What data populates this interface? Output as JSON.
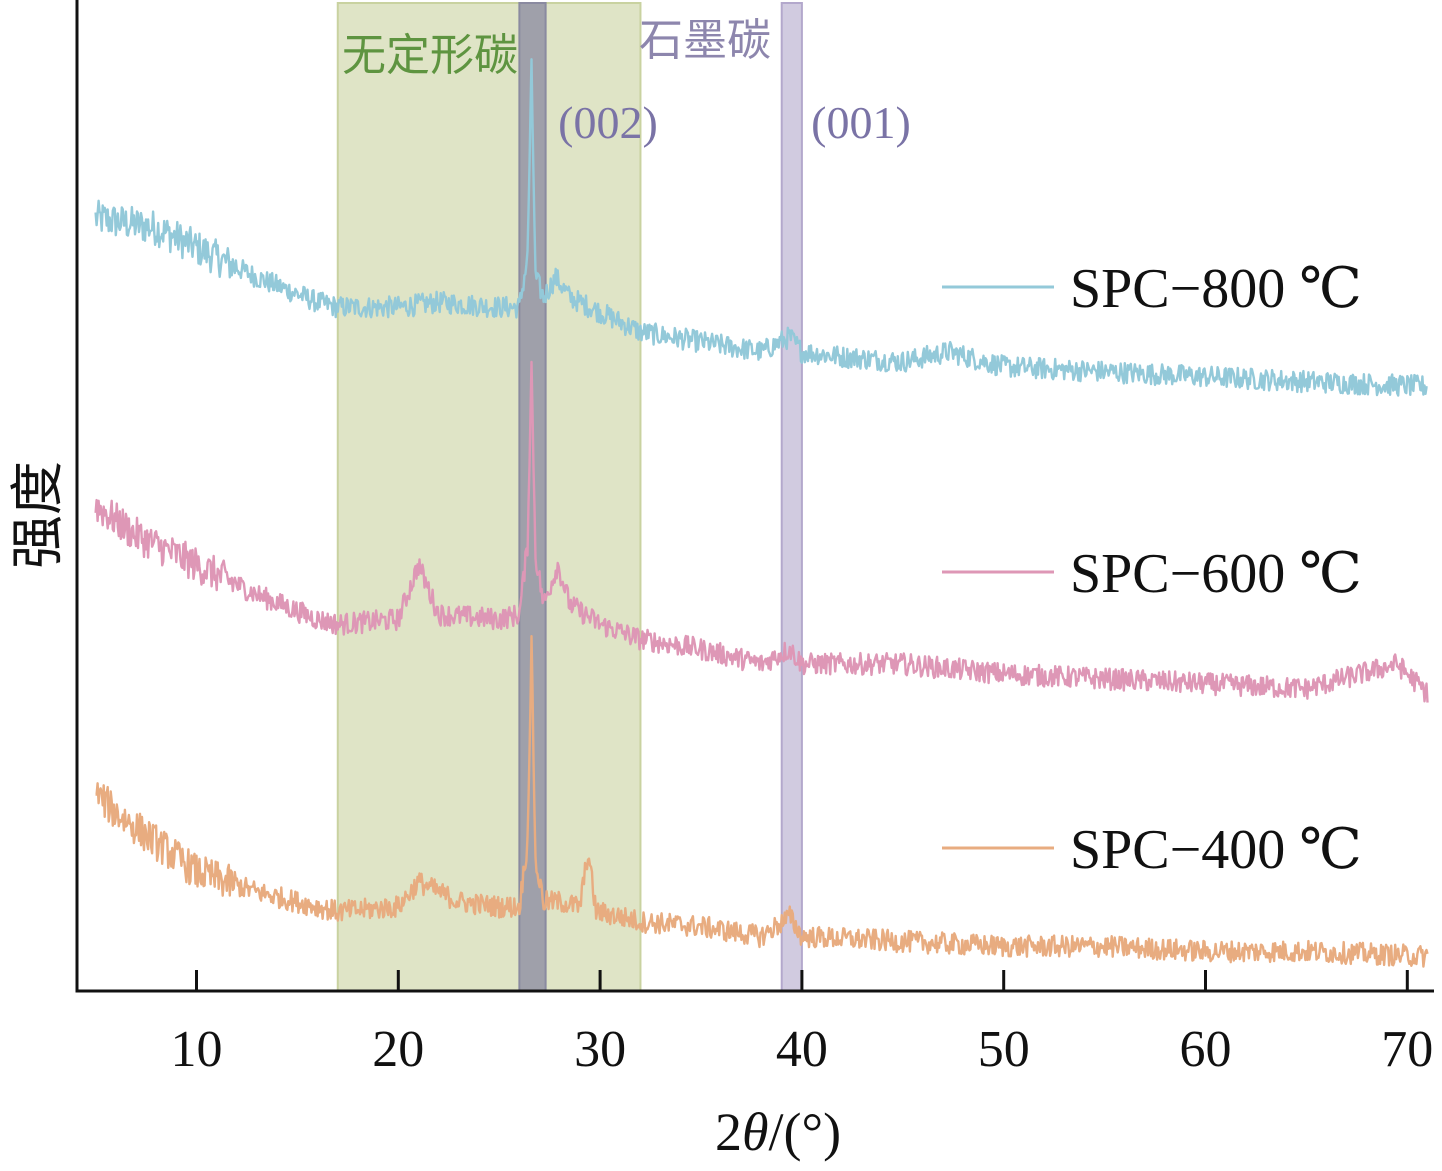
{
  "chart_data": {
    "type": "line",
    "xlabel_prefix": "2",
    "xlabel_theta": "θ",
    "xlabel_suffix": "/(°)",
    "ylabel": "强度",
    "xlim": [
      4,
      71
    ],
    "xticks": [
      "10",
      "20",
      "30",
      "40",
      "50",
      "60",
      "70"
    ],
    "regions": [
      {
        "label": "无定形碳",
        "x_range": [
          17,
          32
        ],
        "color": "#c9d2a0"
      },
      {
        "label": "",
        "x_range": [
          26,
          27.3
        ],
        "color": "#8a8aa0"
      },
      {
        "label": "石墨碳",
        "x_range": [
          39,
          40
        ],
        "color": "#b3a8cc"
      }
    ],
    "peak_labels": [
      {
        "text": "(002)",
        "x": 26.6
      },
      {
        "text": "(001)",
        "x": 39.4
      }
    ],
    "series": [
      {
        "name": "SPC−800 ℃",
        "color": "#93c9d9",
        "x": [
          5,
          8,
          10,
          13,
          16,
          17,
          20,
          22,
          25,
          26,
          26.4,
          26.6,
          26.8,
          27.2,
          27.8,
          28.5,
          30,
          32,
          35,
          38,
          39.4,
          40,
          42,
          45,
          47.3,
          50,
          55,
          60,
          65,
          71
        ],
        "y": [
          0.78,
          0.77,
          0.75,
          0.72,
          0.695,
          0.69,
          0.69,
          0.695,
          0.69,
          0.69,
          0.74,
          0.93,
          0.72,
          0.7,
          0.72,
          0.7,
          0.685,
          0.665,
          0.655,
          0.645,
          0.66,
          0.645,
          0.64,
          0.635,
          0.645,
          0.63,
          0.625,
          0.62,
          0.615,
          0.61
        ]
      },
      {
        "name": "SPC−600 ℃",
        "color": "#de97b6",
        "x": [
          5,
          7,
          10,
          13,
          16,
          17,
          20,
          21,
          22,
          25,
          26,
          26.4,
          26.6,
          26.8,
          27.2,
          27.9,
          28.5,
          30,
          32,
          35,
          38,
          39.4,
          40,
          45,
          50,
          55,
          60,
          65,
          69.5,
          71
        ],
        "y": [
          0.49,
          0.46,
          0.43,
          0.4,
          0.375,
          0.37,
          0.375,
          0.43,
          0.38,
          0.375,
          0.38,
          0.45,
          0.63,
          0.44,
          0.39,
          0.43,
          0.39,
          0.37,
          0.355,
          0.345,
          0.33,
          0.345,
          0.33,
          0.33,
          0.32,
          0.315,
          0.31,
          0.305,
          0.33,
          0.3
        ]
      },
      {
        "name": "SPC−400 ℃",
        "color": "#e8ac80",
        "x": [
          5,
          6,
          8,
          10,
          13,
          16,
          17,
          20,
          21,
          23,
          25,
          26,
          26.4,
          26.6,
          26.8,
          27.2,
          28,
          29,
          29.4,
          29.8,
          31,
          32,
          35,
          38,
          39.4,
          40,
          45,
          50,
          55,
          60,
          65,
          71
        ],
        "y": [
          0.2,
          0.18,
          0.15,
          0.12,
          0.1,
          0.085,
          0.08,
          0.085,
          0.11,
          0.09,
          0.085,
          0.085,
          0.15,
          0.35,
          0.13,
          0.09,
          0.09,
          0.085,
          0.14,
          0.08,
          0.075,
          0.07,
          0.065,
          0.055,
          0.075,
          0.055,
          0.05,
          0.045,
          0.045,
          0.04,
          0.04,
          0.035
        ]
      }
    ]
  }
}
